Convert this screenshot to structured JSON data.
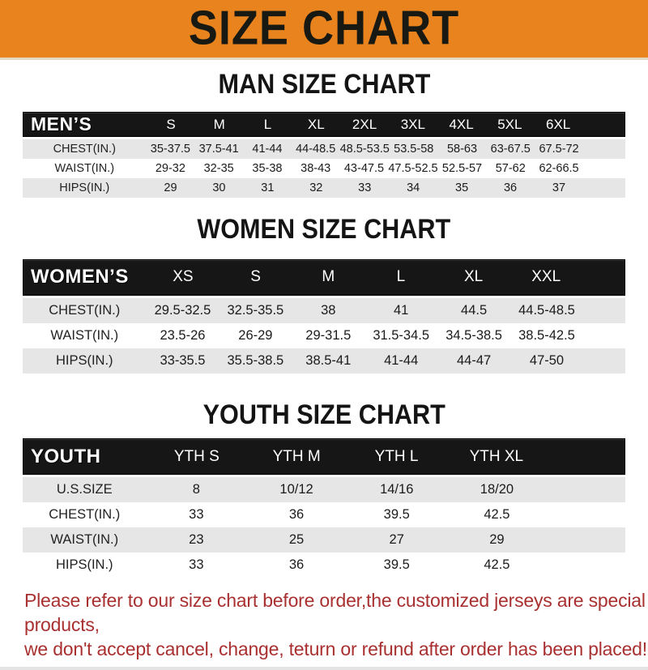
{
  "banner": {
    "title": "SIZE CHART"
  },
  "chart_data": [
    {
      "type": "table",
      "title": "MAN SIZE CHART",
      "header_label": "MEN’S",
      "columns": [
        "S",
        "M",
        "L",
        "XL",
        "2XL",
        "3XL",
        "4XL",
        "5XL",
        "6XL"
      ],
      "rows": [
        {
          "label": "CHEST(IN.)",
          "values": [
            "35-37.5",
            "37.5-41",
            "41-44",
            "44-48.5",
            "48.5-53.5",
            "53.5-58",
            "58-63",
            "63-67.5",
            "67.5-72"
          ]
        },
        {
          "label": "WAIST(IN.)",
          "values": [
            "29-32",
            "32-35",
            "35-38",
            "38-43",
            "43-47.5",
            "47.5-52.5",
            "52.5-57",
            "57-62",
            "62-66.5"
          ]
        },
        {
          "label": "HIPS(IN.)",
          "values": [
            "29",
            "30",
            "31",
            "32",
            "33",
            "34",
            "35",
            "36",
            "37"
          ]
        }
      ]
    },
    {
      "type": "table",
      "title": "WOMEN SIZE CHART",
      "header_label": "WOMEN’S",
      "columns": [
        "XS",
        "S",
        "M",
        "L",
        "XL",
        "XXL"
      ],
      "rows": [
        {
          "label": "CHEST(IN.)",
          "values": [
            "29.5-32.5",
            "32.5-35.5",
            "38",
            "41",
            "44.5",
            "44.5-48.5"
          ]
        },
        {
          "label": "WAIST(IN.)",
          "values": [
            "23.5-26",
            "26-29",
            "29-31.5",
            "31.5-34.5",
            "34.5-38.5",
            "38.5-42.5"
          ]
        },
        {
          "label": "HIPS(IN.)",
          "values": [
            "33-35.5",
            "35.5-38.5",
            "38.5-41",
            "41-44",
            "44-47",
            "47-50"
          ]
        }
      ]
    },
    {
      "type": "table",
      "title": "YOUTH SIZE CHART",
      "header_label": "YOUTH",
      "columns": [
        "YTH S",
        "YTH M",
        "YTH L",
        "YTH XL"
      ],
      "rows": [
        {
          "label": "U.S.SIZE",
          "values": [
            "8",
            "10/12",
            "14/16",
            "18/20"
          ]
        },
        {
          "label": "CHEST(IN.)",
          "values": [
            "33",
            "36",
            "39.5",
            "42.5"
          ]
        },
        {
          "label": "WAIST(IN.)",
          "values": [
            "23",
            "25",
            "27",
            "29"
          ]
        },
        {
          "label": "HIPS(IN.)",
          "values": [
            "33",
            "36",
            "39.5",
            "42.5"
          ]
        }
      ]
    }
  ],
  "footer": {
    "line1": "Please refer to our size chart before order,the customized jerseys are special products,",
    "line2": "we don't accept cancel, change, teturn or refund after order has been placed!"
  },
  "colors": {
    "banner_bg": "#e8831d",
    "table_header_bg": "#161616",
    "row_alt": "#e6e6e6",
    "footer_text": "#a93030",
    "bottom_strip": "#e4e4e4"
  }
}
